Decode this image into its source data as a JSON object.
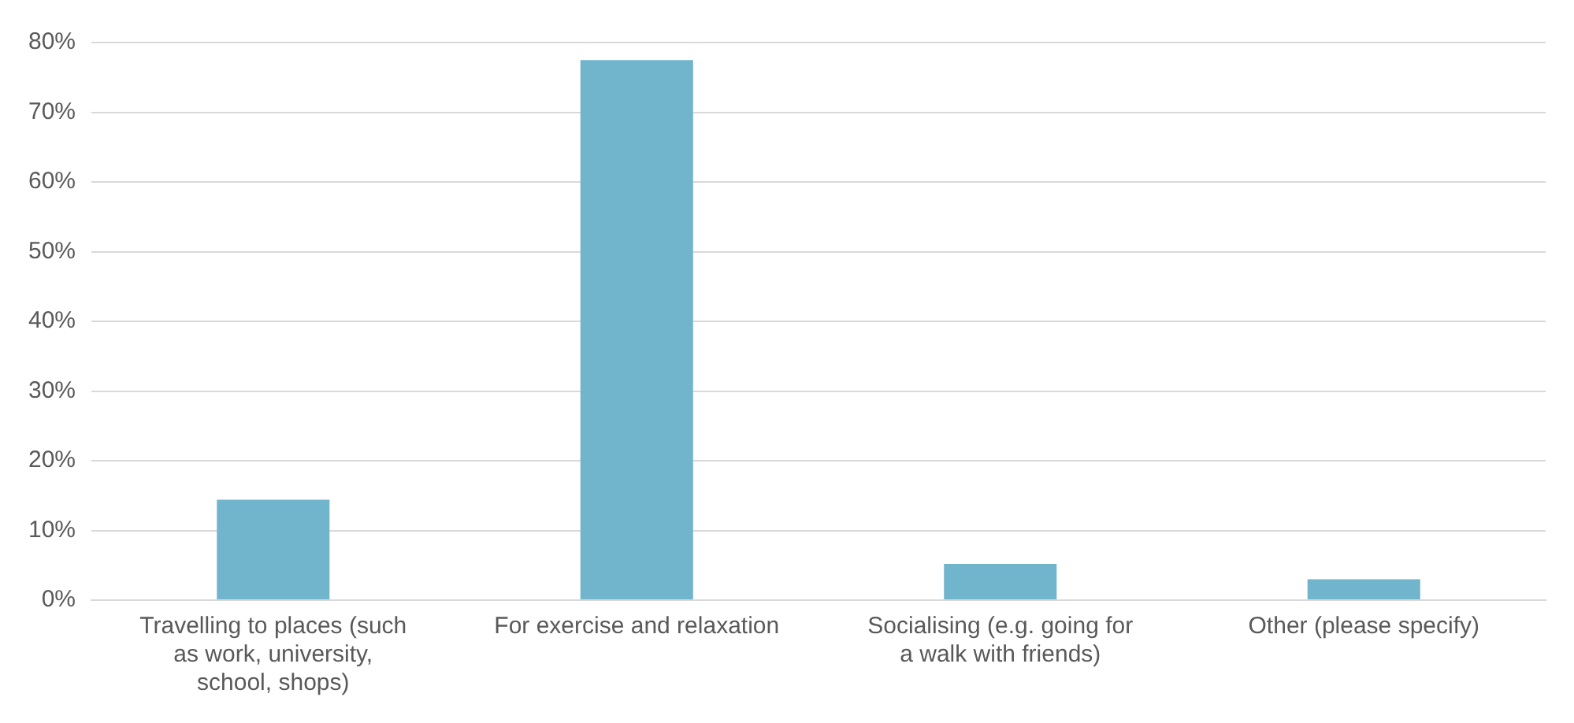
{
  "chart_data": {
    "type": "bar",
    "categories": [
      "Travelling to places (such as work, university, school, shops)",
      "For exercise and relaxation",
      "Socialising (e.g. going for a walk with friends)",
      "Other (please specify)"
    ],
    "values": [
      14.4,
      77.5,
      5.2,
      3.0
    ],
    "color": "#71b5cc",
    "ylim": [
      0,
      80
    ],
    "yticks": [
      {
        "value": 0,
        "label": "0%"
      },
      {
        "value": 10,
        "label": "10%"
      },
      {
        "value": 20,
        "label": "20%"
      },
      {
        "value": 30,
        "label": "30%"
      },
      {
        "value": 40,
        "label": "40%"
      },
      {
        "value": 50,
        "label": "50%"
      },
      {
        "value": 60,
        "label": "60%"
      },
      {
        "value": 70,
        "label": "70%"
      },
      {
        "value": 80,
        "label": "80%"
      }
    ],
    "grid": "y"
  }
}
